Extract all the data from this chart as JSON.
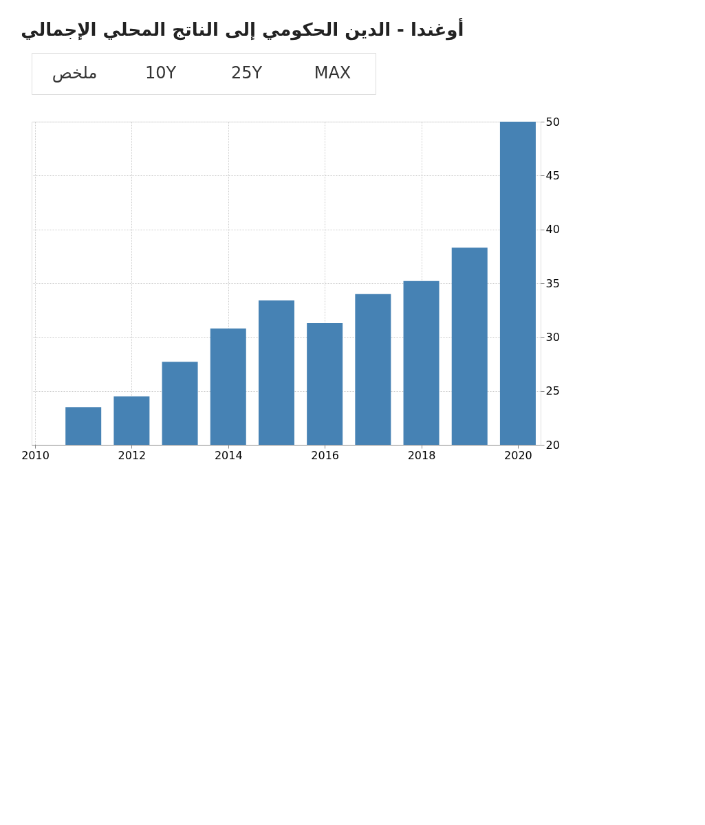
{
  "chart_data": {
    "type": "bar",
    "title": "أوغندا - الدين الحكومي إلى الناتج المحلي الإجمالي",
    "annotations": [
      "ملخص",
      "10Y",
      "25Y",
      "MAX"
    ],
    "x": [
      2011,
      2012,
      2013,
      2014,
      2015,
      2016,
      2017,
      2018,
      2019,
      2020
    ],
    "values": [
      23.5,
      24.5,
      27.7,
      30.8,
      33.4,
      31.3,
      34.0,
      35.2,
      38.3,
      50.0
    ],
    "color": "#4682b4",
    "xlim": [
      2010,
      2020.4
    ],
    "xticks": [
      2010,
      2012,
      2014,
      2016,
      2018,
      2020
    ],
    "ylim": [
      20,
      50
    ],
    "yticks": [
      20,
      25,
      30,
      35,
      40,
      45,
      50
    ],
    "grid": true
  }
}
